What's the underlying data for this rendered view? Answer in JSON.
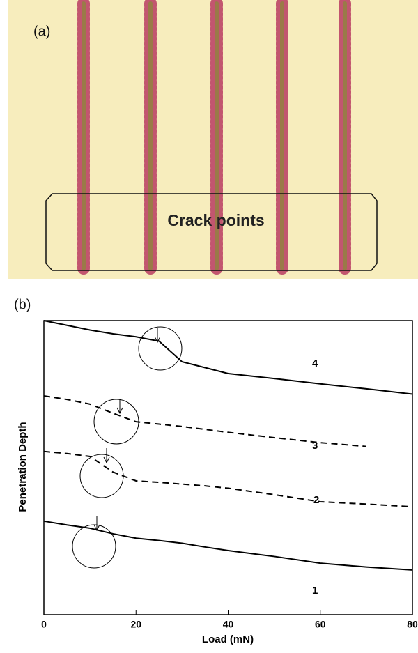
{
  "image": {
    "label": "(a)",
    "annotation": "Crack points"
  },
  "chart_data": {
    "type": "line",
    "panel_label": "(b)",
    "x_label": "Load (mN)",
    "y_label": "Penetration Depth",
    "x": [
      0,
      5,
      10,
      15,
      20,
      25,
      30,
      35,
      40,
      50,
      60,
      70,
      80
    ],
    "series": [
      {
        "name": "1",
        "color": "#000000",
        "dashed": false,
        "values": [
          31.8,
          30.5,
          29.4,
          27.5,
          26,
          25.2,
          24.3,
          23,
          21.8,
          19.8,
          17.5,
          16.2,
          15.2
        ]
      },
      {
        "name": "2",
        "color": "#000000",
        "dashed": true,
        "values": [
          55.5,
          54.8,
          53.8,
          48.5,
          45.5,
          45,
          44.4,
          43.8,
          43,
          40.8,
          38.4,
          37.6,
          36.7
        ]
      },
      {
        "name": "3",
        "color": "#000000",
        "dashed": true,
        "values": [
          74.4,
          73.2,
          71.6,
          68.5,
          65.6,
          64.8,
          64,
          63,
          62,
          60.2,
          58.5,
          57.2,
          null
        ]
      },
      {
        "name": "4",
        "color": "#000000",
        "dashed": false,
        "values": [
          100,
          98.4,
          96.8,
          95.5,
          94.5,
          93,
          86,
          84,
          82,
          80.3,
          78.5,
          76.8,
          75
        ]
      }
    ],
    "xlim": [
      0,
      80
    ],
    "xticks": [
      0,
      20,
      40,
      60,
      80
    ],
    "ylim": [
      0,
      100
    ]
  }
}
